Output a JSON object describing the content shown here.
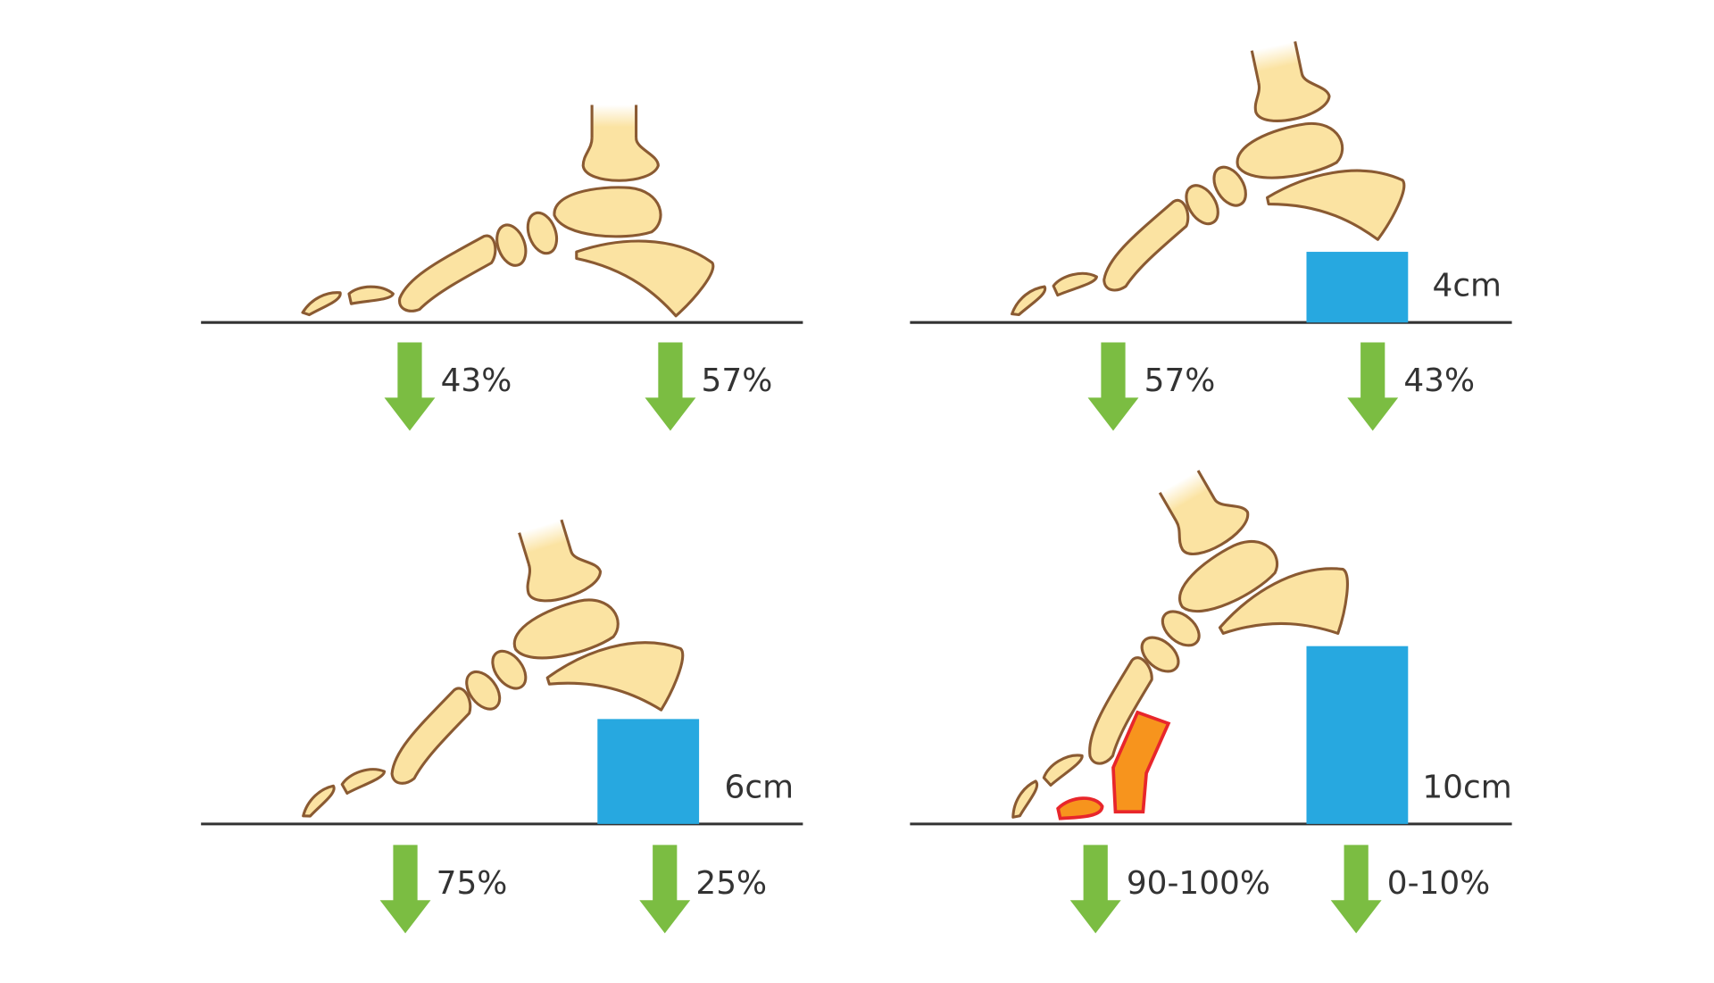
{
  "panels": [
    {
      "forefoot": "43%",
      "rearfoot": "57%"
    },
    {
      "height": "4cm",
      "forefoot": "57%",
      "rearfoot": "43%"
    },
    {
      "height": "6cm",
      "forefoot": "75%",
      "rearfoot": "25%"
    },
    {
      "height": "10cm",
      "forefoot": "90-100%",
      "rearfoot": "0-10%"
    }
  ]
}
